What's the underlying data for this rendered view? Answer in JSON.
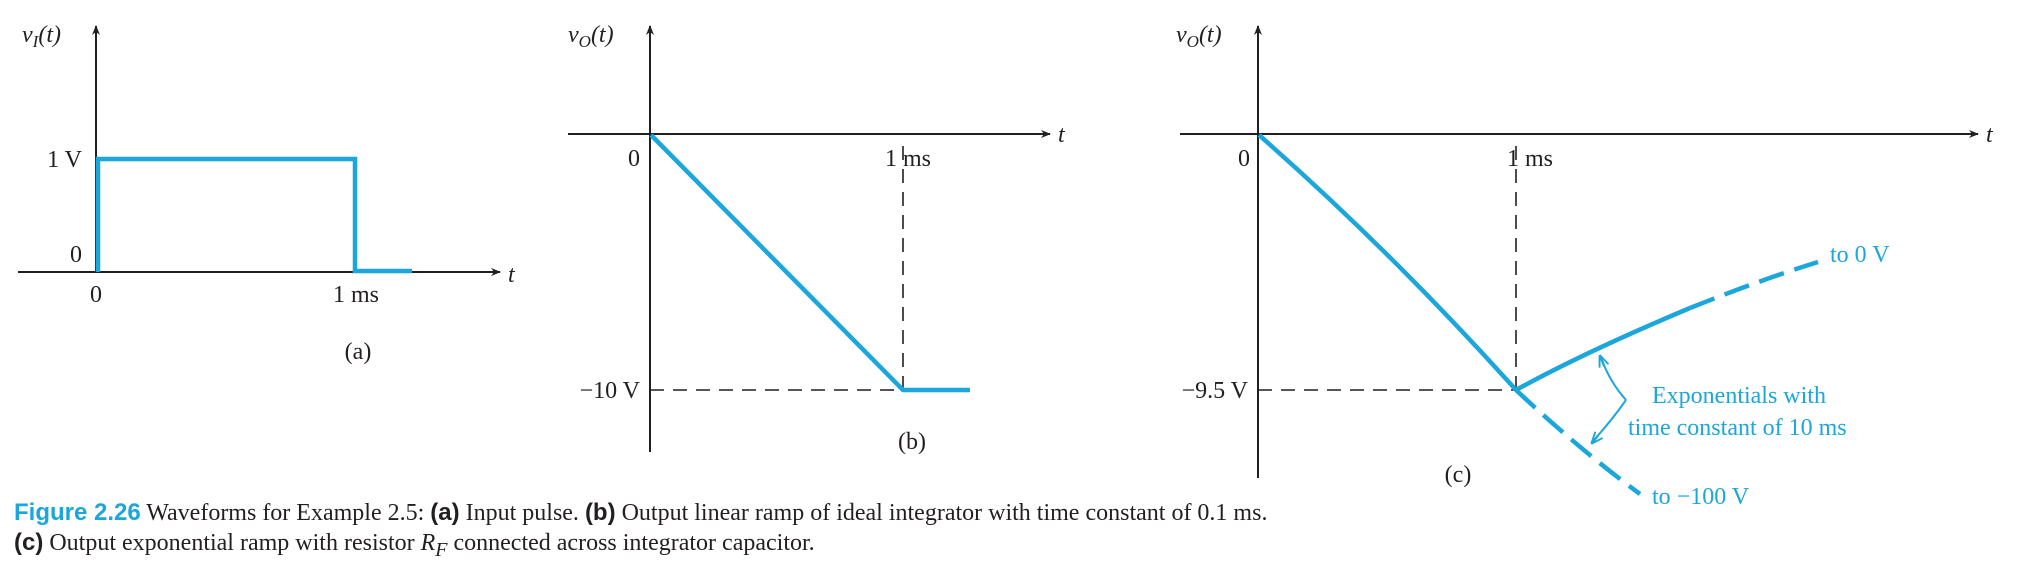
{
  "panel_a": {
    "ylabel_base": "v",
    "ylabel_sub": "I",
    "ylabel_arg": "(t)",
    "xlabel": "t",
    "y_tick_1v": "1 V",
    "y_tick_0": "0",
    "x_tick_0": "0",
    "x_tick_1ms": "1 ms",
    "panel_label": "(a)"
  },
  "panel_b": {
    "ylabel_base": "v",
    "ylabel_sub": "O",
    "ylabel_arg": "(t)",
    "xlabel": "t",
    "origin": "0",
    "x_tick_1ms": "1 ms",
    "y_tick_min": "−10 V",
    "panel_label": "(b)"
  },
  "panel_c": {
    "ylabel_base": "v",
    "ylabel_sub": "O",
    "ylabel_arg": "(t)",
    "xlabel": "t",
    "origin": "0",
    "x_tick_1ms": "1 ms",
    "y_tick_min": "−9.5 V",
    "annotation_to_0": "to 0 V",
    "annotation_exp_line1": "Exponentials with",
    "annotation_exp_line2": "time constant of 10 ms",
    "annotation_to_neg100": "to −100 V",
    "panel_label": "(c)"
  },
  "caption": {
    "figure": "Figure 2.26",
    "intro": " Waveforms for Example 2.5: ",
    "a_label": "(a)",
    "a_text": " Input pulse. ",
    "b_label": "(b)",
    "b_text": " Output linear ramp of ideal integrator with time constant of 0.1 ms. ",
    "c_label": "(c)",
    "c_text_pre": " Output exponential ramp with resistor ",
    "rf_base": "R",
    "rf_sub": "F",
    "c_text_post": " connected across integrator capacitor."
  },
  "colors": {
    "waveform": "#1ba6dc",
    "axes": "#231f20"
  }
}
